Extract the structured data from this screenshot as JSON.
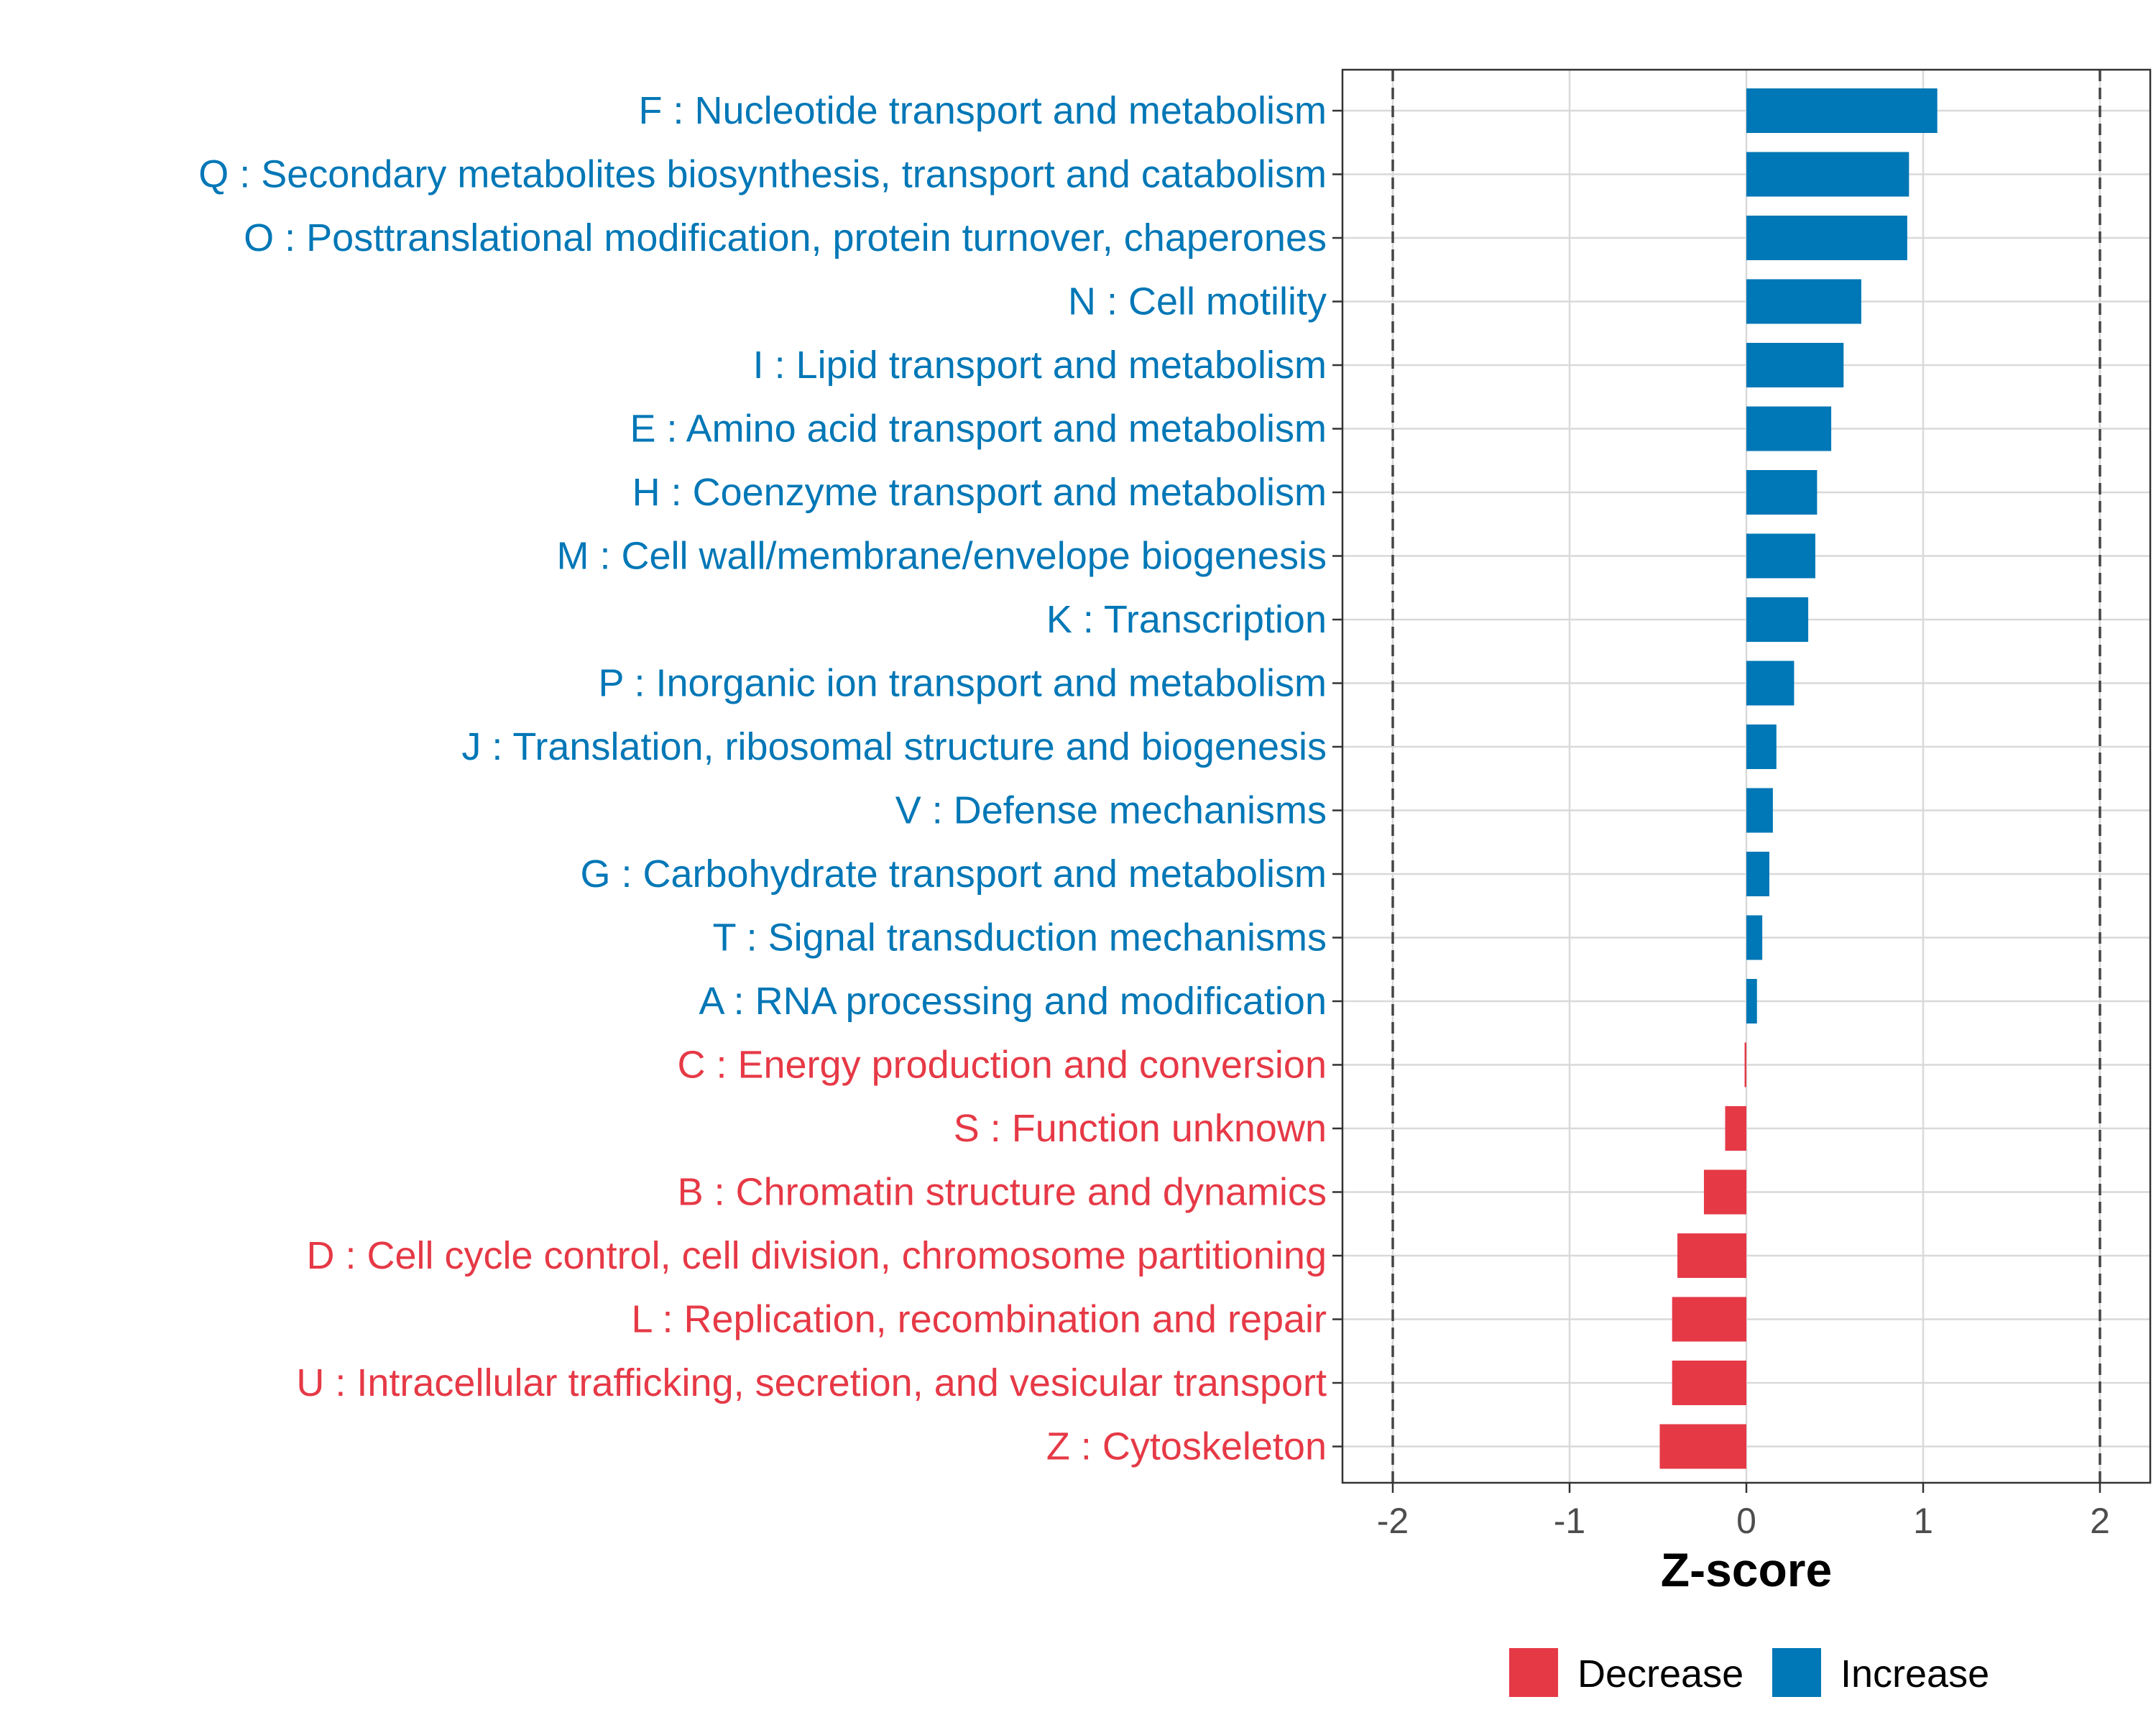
{
  "chart_data": {
    "type": "bar",
    "orientation": "horizontal",
    "title": "",
    "xlabel": "Z-score",
    "ylabel": "",
    "xlim": [
      -2.3,
      2.3
    ],
    "xticks": [
      -2,
      -1,
      0,
      1,
      2
    ],
    "xtick_labels": [
      "-2",
      "-1",
      "0",
      "1",
      "2"
    ],
    "reference_lines": [
      -2,
      2
    ],
    "grid": true,
    "legend_position": "bottom",
    "colors": {
      "Decrease": "#E63946",
      "Increase": "#0077B6"
    },
    "legend": [
      "Decrease",
      "Increase"
    ],
    "categories": [
      "F : Nucleotide transport and metabolism",
      "Q : Secondary metabolites biosynthesis, transport and catabolism",
      "O : Posttranslational modification, protein turnover, chaperones",
      "N : Cell motility",
      "I : Lipid transport and metabolism",
      "E : Amino acid transport and metabolism",
      "H : Coenzyme transport and metabolism",
      "M : Cell wall/membrane/envelope biogenesis",
      "K : Transcription",
      "P : Inorganic ion transport and metabolism",
      "J : Translation, ribosomal structure and biogenesis",
      "V : Defense mechanisms",
      "G : Carbohydrate transport and metabolism",
      "T : Signal transduction mechanisms",
      "A : RNA processing and modification",
      "C : Energy production and conversion",
      "S : Function unknown",
      "B : Chromatin structure and dynamics",
      "D : Cell cycle control, cell division, chromosome partitioning",
      "L : Replication, recombination and repair",
      "U : Intracellular trafficking, secretion, and vesicular transport",
      "Z : Cytoskeleton"
    ],
    "values": [
      1.08,
      0.92,
      0.91,
      0.65,
      0.55,
      0.48,
      0.4,
      0.39,
      0.35,
      0.27,
      0.17,
      0.15,
      0.13,
      0.09,
      0.06,
      -0.01,
      -0.12,
      -0.24,
      -0.39,
      -0.42,
      -0.42,
      -0.49
    ],
    "groups": [
      "Increase",
      "Increase",
      "Increase",
      "Increase",
      "Increase",
      "Increase",
      "Increase",
      "Increase",
      "Increase",
      "Increase",
      "Increase",
      "Increase",
      "Increase",
      "Increase",
      "Increase",
      "Decrease",
      "Decrease",
      "Decrease",
      "Decrease",
      "Decrease",
      "Decrease",
      "Decrease"
    ]
  }
}
